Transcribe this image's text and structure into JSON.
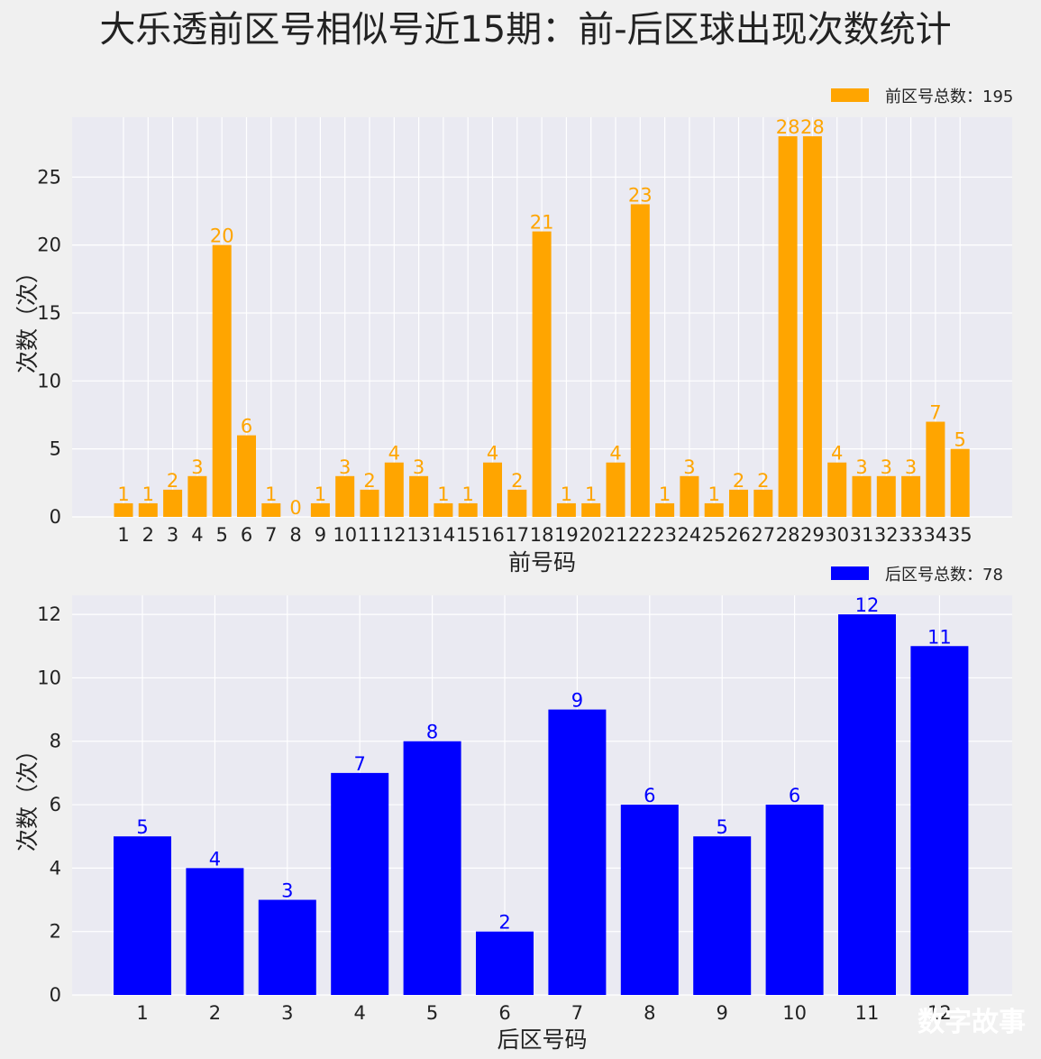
{
  "title": "大乐透前区号相似号近15期：前-后区球出现次数统计",
  "watermark": "数字故事",
  "chart_data": [
    {
      "type": "bar",
      "categories": [
        "1",
        "2",
        "3",
        "4",
        "5",
        "6",
        "7",
        "8",
        "9",
        "10",
        "11",
        "12",
        "13",
        "14",
        "15",
        "16",
        "17",
        "18",
        "19",
        "20",
        "21",
        "22",
        "23",
        "24",
        "25",
        "26",
        "27",
        "28",
        "29",
        "30",
        "31",
        "32",
        "33",
        "34",
        "35"
      ],
      "values": [
        1,
        1,
        2,
        3,
        20,
        6,
        1,
        0,
        1,
        3,
        2,
        4,
        3,
        1,
        1,
        4,
        2,
        21,
        1,
        1,
        4,
        23,
        1,
        3,
        1,
        2,
        2,
        28,
        28,
        4,
        3,
        3,
        3,
        7,
        5
      ],
      "color": "#ffa500",
      "legend": "前区号总数：195",
      "legend_position": "top-right",
      "xlabel": "前号码",
      "ylabel": "次数（次）",
      "ylim": [
        0,
        29.4
      ],
      "yticks": [
        0,
        5,
        10,
        15,
        20,
        25
      ],
      "grid": true
    },
    {
      "type": "bar",
      "categories": [
        "1",
        "2",
        "3",
        "4",
        "5",
        "6",
        "7",
        "8",
        "9",
        "10",
        "11",
        "12"
      ],
      "values": [
        5,
        4,
        3,
        7,
        8,
        2,
        9,
        6,
        5,
        6,
        12,
        11
      ],
      "color": "#0000ff",
      "legend": "后区号总数：78",
      "legend_position": "top-right",
      "xlabel": "后区号码",
      "ylabel": "次数（次）",
      "ylim": [
        0,
        12.6
      ],
      "yticks": [
        0,
        2,
        4,
        6,
        8,
        10,
        12
      ],
      "grid": true
    }
  ]
}
